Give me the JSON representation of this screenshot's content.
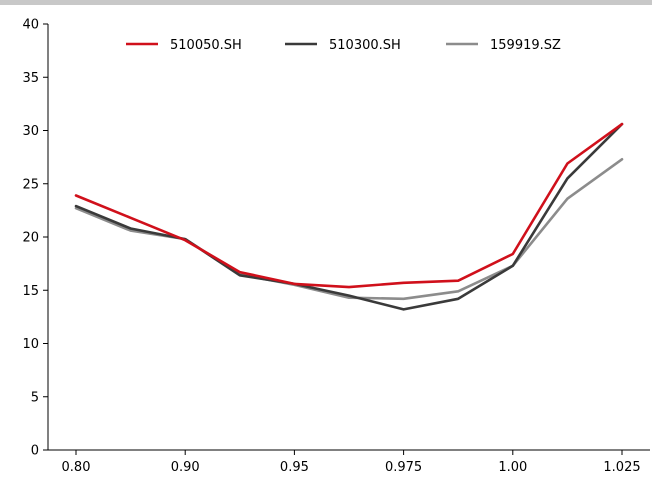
{
  "chart_data": {
    "type": "line",
    "categories": [
      "0.80",
      "",
      "0.90",
      "",
      "0.95",
      "",
      "0.975",
      "",
      "1.00",
      "",
      "1.025"
    ],
    "series": [
      {
        "name": "510050.SH",
        "color": "#d0101b",
        "values": [
          23.9,
          21.8,
          19.7,
          16.7,
          15.6,
          15.3,
          15.7,
          15.9,
          18.4,
          26.9,
          30.6
        ]
      },
      {
        "name": "510300.SH",
        "color": "#3a3a3a",
        "values": [
          22.9,
          20.8,
          19.8,
          16.4,
          15.6,
          14.5,
          13.2,
          14.2,
          17.3,
          25.5,
          30.6
        ]
      },
      {
        "name": "159919.SZ",
        "color": "#8c8c8c",
        "values": [
          22.7,
          20.6,
          19.8,
          16.5,
          15.5,
          14.3,
          14.2,
          14.9,
          17.3,
          23.6,
          27.3
        ]
      }
    ],
    "ylim": [
      0,
      40
    ],
    "yticks": [
      "0",
      "5",
      "10",
      "15",
      "20",
      "25",
      "30",
      "35",
      "40"
    ],
    "legend": "top-center",
    "grid": false
  }
}
